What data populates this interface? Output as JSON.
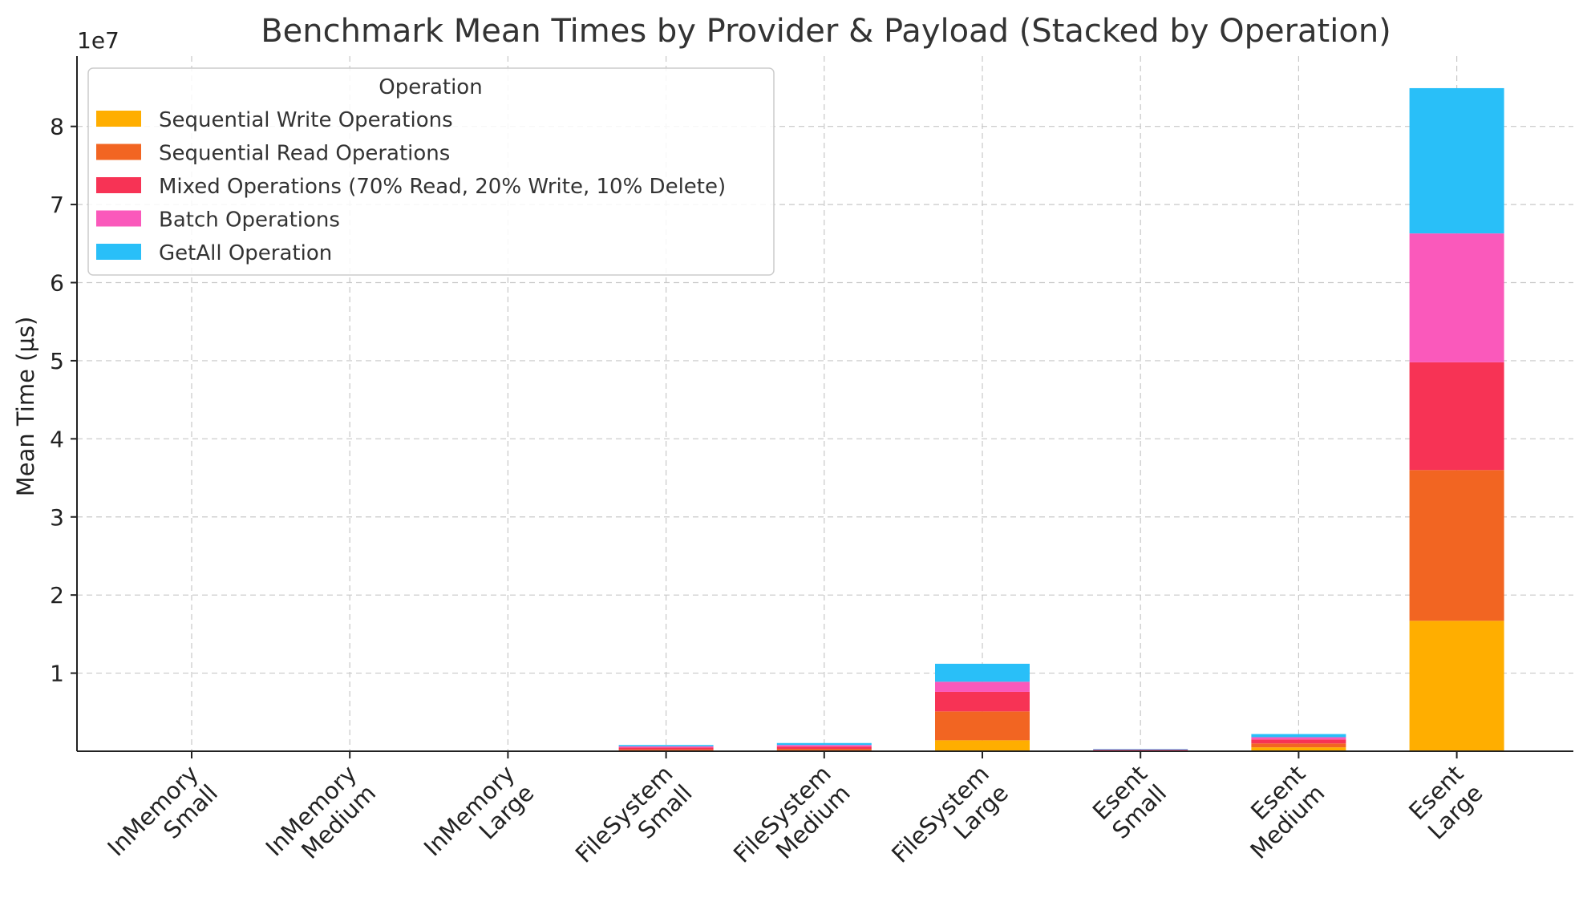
{
  "chart_data": {
    "type": "bar",
    "stacked": true,
    "title": "Benchmark Mean Times by Provider & Payload (Stacked by Operation)",
    "xlabel": "",
    "ylabel": "Mean Time (µs)",
    "y_offset_label": "1e7",
    "y_scale": 10000000,
    "ylim": [
      0,
      89000000
    ],
    "yticks": [
      10000000,
      20000000,
      30000000,
      40000000,
      50000000,
      60000000,
      70000000,
      80000000
    ],
    "ytick_labels": [
      "1",
      "2",
      "3",
      "4",
      "5",
      "6",
      "7",
      "8"
    ],
    "grid": true,
    "legend": {
      "title": "Operation",
      "placement": "top-left"
    },
    "categories": [
      [
        "InMemory",
        "Small"
      ],
      [
        "InMemory",
        "Medium"
      ],
      [
        "InMemory",
        "Large"
      ],
      [
        "FileSystem",
        "Small"
      ],
      [
        "FileSystem",
        "Medium"
      ],
      [
        "FileSystem",
        "Large"
      ],
      [
        "Esent",
        "Small"
      ],
      [
        "Esent",
        "Medium"
      ],
      [
        "Esent",
        "Large"
      ]
    ],
    "series": [
      {
        "name": "Sequential Write Operations",
        "color": "#FFAE00",
        "values": [
          5000,
          8000,
          15000,
          80000,
          100000,
          1400000,
          30000,
          500000,
          16700000
        ]
      },
      {
        "name": "Sequential Read Operations",
        "color": "#F26522",
        "values": [
          5000,
          8000,
          15000,
          150000,
          200000,
          3700000,
          60000,
          500000,
          19300000
        ]
      },
      {
        "name": "Mixed Operations (70% Read, 20% Write, 10% Delete)",
        "color": "#F73355",
        "values": [
          5000,
          8000,
          15000,
          250000,
          300000,
          2500000,
          80000,
          500000,
          13800000
        ]
      },
      {
        "name": "Batch Operations",
        "color": "#FA59BB",
        "values": [
          5000,
          8000,
          15000,
          150000,
          200000,
          1300000,
          60000,
          300000,
          16500000
        ]
      },
      {
        "name": "GetAll Operation",
        "color": "#29BFF8",
        "values": [
          5000,
          8000,
          15000,
          170000,
          250000,
          2300000,
          70000,
          400000,
          18600000
        ]
      }
    ]
  }
}
